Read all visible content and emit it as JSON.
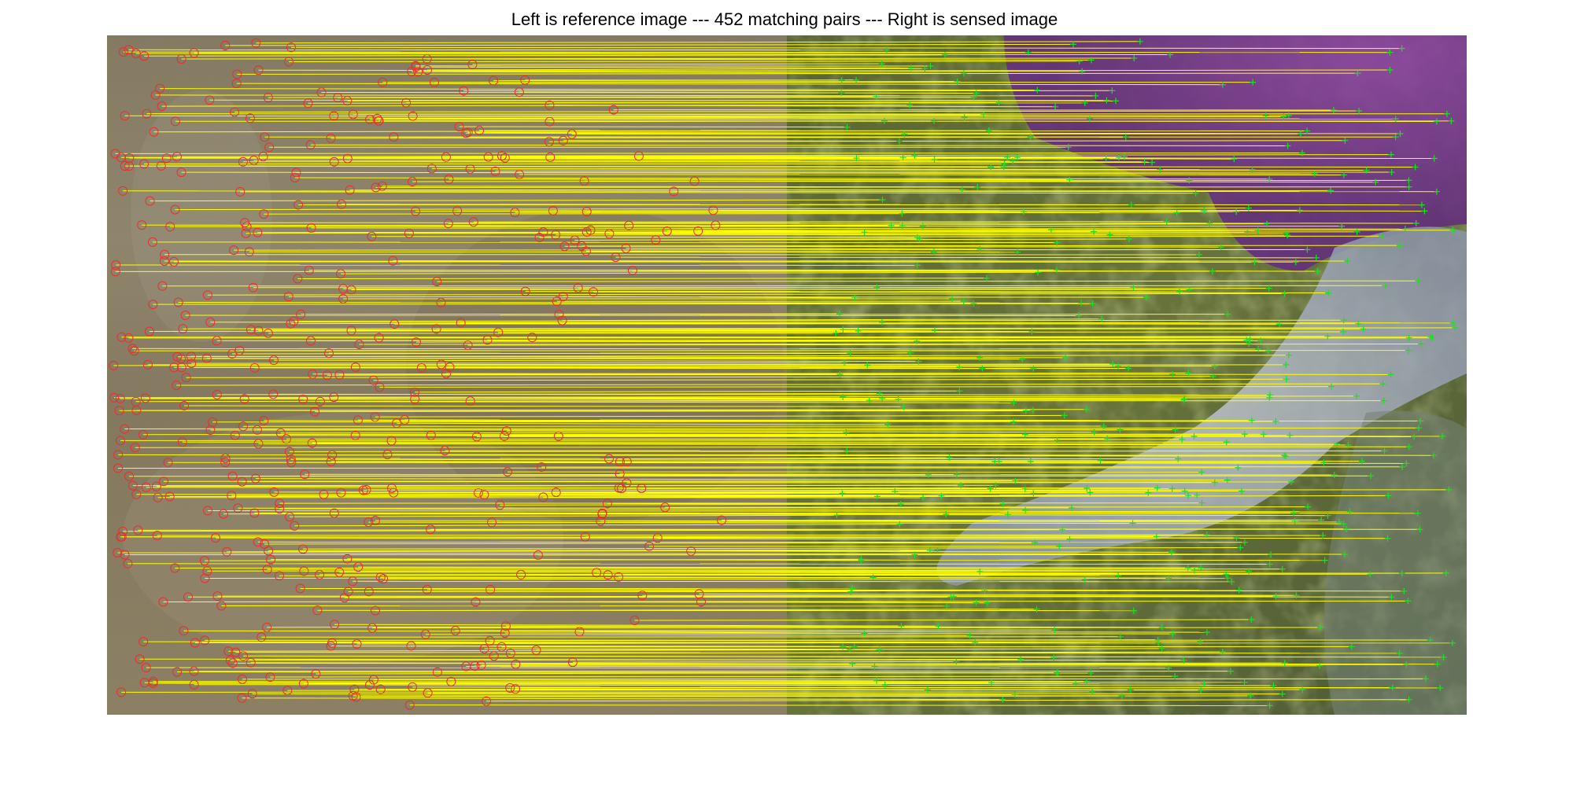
{
  "figure": {
    "title": "Left is reference image --- 452 matching pairs --- Right is sensed image"
  },
  "colors": {
    "background": "#ffffff",
    "reference_marker": "#e8312a",
    "sensed_marker": "#22dd22",
    "match_line": "#ffff00",
    "reference_image_tone": "#7e7258",
    "sensed_image_tone": "#5d6a3a",
    "sensed_water_tone": "#8a3aa6",
    "sensed_cloud_tone": "#b9c0d2"
  },
  "panels": [
    {
      "name": "reference-image",
      "role": "reference"
    },
    {
      "name": "sensed-image",
      "role": "sensed"
    }
  ],
  "matching_pairs": 452,
  "marker_styles": {
    "reference": "circle",
    "sensed": "plus"
  }
}
